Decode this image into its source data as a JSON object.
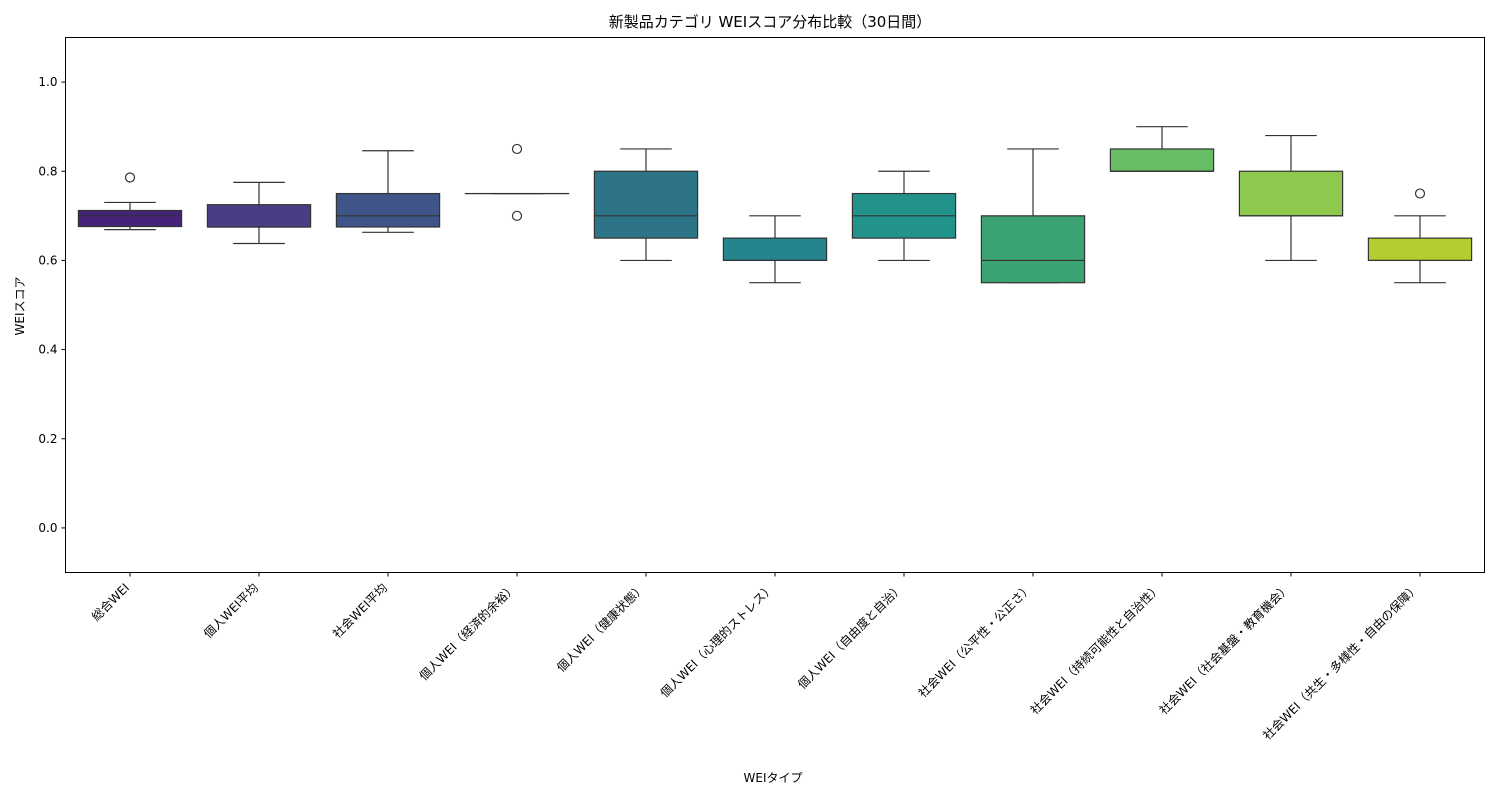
{
  "chart_data": {
    "type": "box",
    "title": "新製品カテゴリ WEIスコア分布比較（30日間）",
    "xlabel": "WEIタイプ",
    "ylabel": "WEIスコア",
    "ylim": [
      -0.1,
      1.1
    ],
    "yticks": [
      0.0,
      0.2,
      0.4,
      0.6,
      0.8,
      1.0
    ],
    "ytick_labels": [
      "0.0",
      "0.2",
      "0.4",
      "0.6",
      "0.8",
      "1.0"
    ],
    "grid": false,
    "categories": [
      "総合WEI",
      "個人WEI平均",
      "社会WEI平均",
      "個人WEI（経済的余裕）",
      "個人WEI（健康状態）",
      "個人WEI（心理的ストレス）",
      "個人WEI（自由度と自治）",
      "社会WEI（公平性・公正さ）",
      "社会WEI（持続可能性と自治性）",
      "社会WEI（社会基盤・教育機会）",
      "社会WEI（共生・多様性・自由の保障）"
    ],
    "boxes": [
      {
        "color": "#46237a",
        "whisker_low": 0.669,
        "q1": 0.676,
        "median": 0.7,
        "q3": 0.712,
        "whisker_high": 0.73,
        "outliers": [
          0.786
        ]
      },
      {
        "color": "#4a3d85",
        "whisker_low": 0.638,
        "q1": 0.675,
        "median": 0.675,
        "q3": 0.725,
        "whisker_high": 0.775,
        "outliers": []
      },
      {
        "color": "#3f5489",
        "whisker_low": 0.663,
        "q1": 0.675,
        "median": 0.7,
        "q3": 0.75,
        "whisker_high": 0.846,
        "outliers": []
      },
      {
        "color": "#38658b",
        "whisker_low": 0.75,
        "q1": 0.75,
        "median": 0.75,
        "q3": 0.75,
        "whisker_high": 0.75,
        "outliers": [
          0.7,
          0.85
        ]
      },
      {
        "color": "#2e7488",
        "whisker_low": 0.6,
        "q1": 0.65,
        "median": 0.7,
        "q3": 0.8,
        "whisker_high": 0.85,
        "outliers": []
      },
      {
        "color": "#25848e",
        "whisker_low": 0.55,
        "q1": 0.6,
        "median": 0.6,
        "q3": 0.65,
        "whisker_high": 0.7,
        "outliers": []
      },
      {
        "color": "#21938b",
        "whisker_low": 0.6,
        "q1": 0.65,
        "median": 0.7,
        "q3": 0.75,
        "whisker_high": 0.8,
        "outliers": []
      },
      {
        "color": "#3ba272",
        "whisker_low": 0.55,
        "q1": 0.55,
        "median": 0.6,
        "q3": 0.7,
        "whisker_high": 0.85,
        "outliers": []
      },
      {
        "color": "#67bd63",
        "whisker_low": 0.8,
        "q1": 0.8,
        "median": 0.8,
        "q3": 0.85,
        "whisker_high": 0.9,
        "outliers": []
      },
      {
        "color": "#8dc94d",
        "whisker_low": 0.6,
        "q1": 0.7,
        "median": 0.7,
        "q3": 0.8,
        "whisker_high": 0.88,
        "outliers": []
      },
      {
        "color": "#b5cc30",
        "whisker_low": 0.55,
        "q1": 0.6,
        "median": 0.6,
        "q3": 0.65,
        "whisker_high": 0.7,
        "outliers": [
          0.75
        ]
      }
    ]
  }
}
